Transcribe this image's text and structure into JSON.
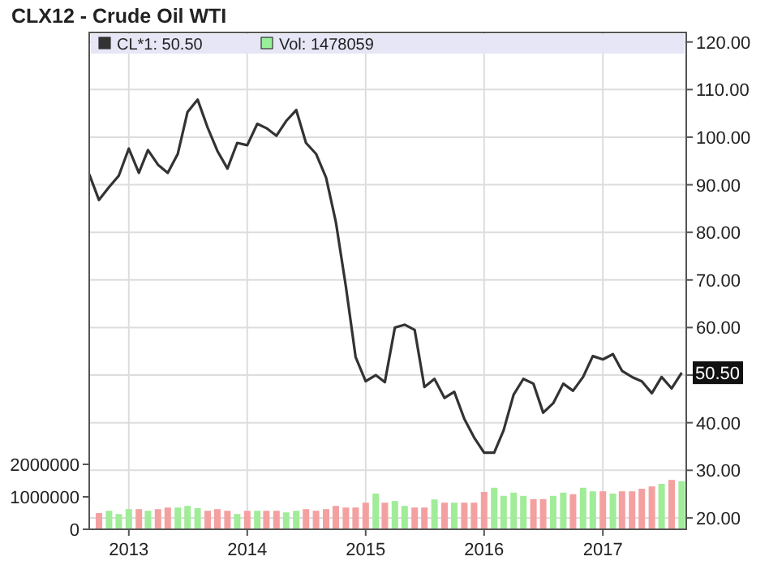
{
  "chart_data": {
    "type": "bar",
    "title": "CLX12 - Crude Oil WTI",
    "x": [
      "2012-10",
      "2012-11",
      "2012-12",
      "2013-01",
      "2013-02",
      "2013-03",
      "2013-04",
      "2013-05",
      "2013-06",
      "2013-07",
      "2013-08",
      "2013-09",
      "2013-10",
      "2013-11",
      "2013-12",
      "2014-01",
      "2014-02",
      "2014-03",
      "2014-04",
      "2014-05",
      "2014-06",
      "2014-07",
      "2014-08",
      "2014-09",
      "2014-10",
      "2014-11",
      "2014-12",
      "2015-01",
      "2015-02",
      "2015-03",
      "2015-04",
      "2015-05",
      "2015-06",
      "2015-07",
      "2015-08",
      "2015-09",
      "2015-10",
      "2015-11",
      "2015-12",
      "2016-01",
      "2016-02",
      "2016-03",
      "2016-04",
      "2016-05",
      "2016-06",
      "2016-07",
      "2016-08",
      "2016-09",
      "2016-10",
      "2016-11",
      "2016-12",
      "2017-01",
      "2017-02",
      "2017-03",
      "2017-04",
      "2017-05",
      "2017-06",
      "2017-07",
      "2017-08",
      "2017-09"
    ],
    "series": [
      {
        "name": "Vol: 1478059",
        "color": "#99ee99",
        "colors": [
          "#f4a0a0",
          "#a0ec98",
          "#a0ec98",
          "#a0ec98",
          "#f4a0a0",
          "#a0ec98",
          "#f4a0a0",
          "#f4a0a0",
          "#a0ec98",
          "#a0ec98",
          "#a0ec98",
          "#f4a0a0",
          "#f4a0a0",
          "#f4a0a0",
          "#a0ec98",
          "#f4a0a0",
          "#a0ec98",
          "#f4a0a0",
          "#f4a0a0",
          "#a0ec98",
          "#a0ec98",
          "#f4a0a0",
          "#f4a0a0",
          "#f4a0a0",
          "#f4a0a0",
          "#f4a0a0",
          "#f4a0a0",
          "#f4a0a0",
          "#a0ec98",
          "#f4a0a0",
          "#a0ec98",
          "#a0ec98",
          "#f4a0a0",
          "#f4a0a0",
          "#a0ec98",
          "#f4a0a0",
          "#a0ec98",
          "#f4a0a0",
          "#f4a0a0",
          "#f4a0a0",
          "#a0ec98",
          "#a0ec98",
          "#a0ec98",
          "#a0ec98",
          "#f4a0a0",
          "#f4a0a0",
          "#a0ec98",
          "#a0ec98",
          "#f4a0a0",
          "#a0ec98",
          "#a0ec98",
          "#f4a0a0",
          "#a0ec98",
          "#f4a0a0",
          "#f4a0a0",
          "#f4a0a0",
          "#f4a0a0",
          "#a0ec98",
          "#f4a0a0",
          "#a0ec98"
        ],
        "values": [
          500000,
          570000,
          470000,
          620000,
          620000,
          570000,
          620000,
          670000,
          670000,
          720000,
          650000,
          570000,
          620000,
          570000,
          470000,
          570000,
          570000,
          570000,
          570000,
          520000,
          570000,
          620000,
          570000,
          620000,
          720000,
          670000,
          670000,
          820000,
          1100000,
          820000,
          870000,
          720000,
          670000,
          670000,
          920000,
          820000,
          820000,
          820000,
          820000,
          1150000,
          1280000,
          1030000,
          1130000,
          1030000,
          930000,
          930000,
          1030000,
          1130000,
          1080000,
          1280000,
          1170000,
          1170000,
          1100000,
          1170000,
          1170000,
          1250000,
          1320000,
          1400000,
          1520000,
          1480000
        ]
      },
      {
        "name": "CL*1: 50.50",
        "type": "line",
        "axis": "y2",
        "color": "#333333",
        "x": [
          "2012-09",
          "2012-10",
          "2012-11",
          "2012-12",
          "2013-01",
          "2013-02",
          "2013-03",
          "2013-04",
          "2013-05",
          "2013-06",
          "2013-07",
          "2013-08",
          "2013-09",
          "2013-10",
          "2013-11",
          "2013-12",
          "2014-01",
          "2014-02",
          "2014-03",
          "2014-04",
          "2014-05",
          "2014-06",
          "2014-07",
          "2014-08",
          "2014-09",
          "2014-10",
          "2014-11",
          "2014-12",
          "2015-01",
          "2015-02",
          "2015-03",
          "2015-04",
          "2015-05",
          "2015-06",
          "2015-07",
          "2015-08",
          "2015-09",
          "2015-10",
          "2015-11",
          "2015-12",
          "2016-01",
          "2016-02",
          "2016-03",
          "2016-04",
          "2016-05",
          "2016-06",
          "2016-07",
          "2016-08",
          "2016-09",
          "2016-10",
          "2016-11",
          "2016-12",
          "2017-01",
          "2017-02",
          "2017-03",
          "2017-04",
          "2017-05",
          "2017-06",
          "2017-07",
          "2017-08",
          "2017-09"
        ],
        "values": [
          92.2,
          86.8,
          89.5,
          91.9,
          97.6,
          92.5,
          97.3,
          94.2,
          92.5,
          96.5,
          105.3,
          107.9,
          102.0,
          97.1,
          93.4,
          98.8,
          98.3,
          102.8,
          101.9,
          100.3,
          103.4,
          105.7,
          98.8,
          96.5,
          91.5,
          82.2,
          68.6,
          53.8,
          48.7,
          50.0,
          48.5,
          60.0,
          60.6,
          59.5,
          47.5,
          49.2,
          45.2,
          46.5,
          40.8,
          36.9,
          33.7,
          33.7,
          38.4,
          45.9,
          49.2,
          48.2,
          42.1,
          44.1,
          48.2,
          46.7,
          49.6,
          54.0,
          53.3,
          54.4,
          50.9,
          49.6,
          48.7,
          46.2,
          49.6,
          47.2,
          50.5
        ]
      }
    ],
    "xlim": [
      "2012-09-01",
      "2017-09-15"
    ],
    "xticks": [
      {
        "value": "2013-01-01",
        "label": "2013"
      },
      {
        "value": "2014-01-01",
        "label": "2014"
      },
      {
        "value": "2015-01-01",
        "label": "2015"
      },
      {
        "value": "2016-01-01",
        "label": "2016"
      },
      {
        "value": "2017-01-01",
        "label": "2017"
      }
    ],
    "ylim": [
      0,
      15300000
    ],
    "yticks": [
      0,
      1000000,
      2000000
    ],
    "y2lim": [
      17.6,
      122
    ],
    "y2ticks": [
      {
        "value": 20,
        "label": "20.00"
      },
      {
        "value": 30,
        "label": "30.00"
      },
      {
        "value": 40,
        "label": "40.00"
      },
      {
        "value": 50,
        "label": null
      },
      {
        "value": 60,
        "label": "60.00"
      },
      {
        "value": 70,
        "label": "70.00"
      },
      {
        "value": 80,
        "label": "80.00"
      },
      {
        "value": 90,
        "label": "90.00"
      },
      {
        "value": 100,
        "label": "100.00"
      },
      {
        "value": 110,
        "label": "110.00"
      },
      {
        "value": 120,
        "label": "120.00"
      }
    ],
    "annotations": [
      "50.50"
    ],
    "grid": true,
    "legend": "top left"
  }
}
